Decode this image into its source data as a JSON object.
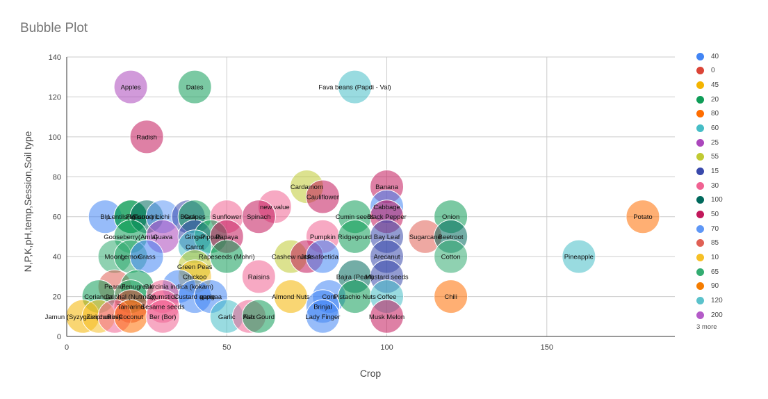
{
  "chart_data": {
    "type": "scatter",
    "subtype": "bubble",
    "title": "Bubble Plot",
    "xlabel": "Crop",
    "ylabel": "N,P,K,pH,temp,Session,Soil type",
    "xlim": [
      0,
      190
    ],
    "ylim": [
      0,
      140
    ],
    "x_ticks": [
      0,
      50,
      100,
      150
    ],
    "y_ticks": [
      0,
      20,
      40,
      60,
      80,
      100,
      120,
      140
    ],
    "grid": true,
    "legend_position": "right",
    "legend": [
      {
        "label": "40",
        "color": "#4285f4"
      },
      {
        "label": "0",
        "color": "#db4437"
      },
      {
        "label": "45",
        "color": "#f4b400"
      },
      {
        "label": "20",
        "color": "#0f9d58"
      },
      {
        "label": "80",
        "color": "#ff6d00"
      },
      {
        "label": "60",
        "color": "#46bdc6"
      },
      {
        "label": "25",
        "color": "#ab47bc"
      },
      {
        "label": "55",
        "color": "#c0ca33"
      },
      {
        "label": "15",
        "color": "#3949ab"
      },
      {
        "label": "30",
        "color": "#f06292"
      },
      {
        "label": "100",
        "color": "#00695c"
      },
      {
        "label": "50",
        "color": "#c2185b"
      },
      {
        "label": "70",
        "color": "#5e97f6"
      },
      {
        "label": "85",
        "color": "#e06055"
      },
      {
        "label": "10",
        "color": "#f6c026"
      },
      {
        "label": "65",
        "color": "#33ac71"
      },
      {
        "label": "90",
        "color": "#f57c00"
      },
      {
        "label": "120",
        "color": "#5bc2cb"
      },
      {
        "label": "200",
        "color": "#b45bc8"
      }
    ],
    "legend_more": "3 more",
    "points": [
      {
        "label": "Apples",
        "x": 20,
        "y": 125,
        "color": "#ab47bc"
      },
      {
        "label": "Dates",
        "x": 40,
        "y": 125,
        "color": "#0f9d58"
      },
      {
        "label": "Fava beans (Papdi - Val)",
        "x": 90,
        "y": 125,
        "color": "#46bdc6"
      },
      {
        "label": "Radish",
        "x": 25,
        "y": 100,
        "color": "#c2185b"
      },
      {
        "label": "Cardamom",
        "x": 75,
        "y": 75,
        "color": "#c0ca33"
      },
      {
        "label": "Banana",
        "x": 100,
        "y": 75,
        "color": "#c2185b"
      },
      {
        "label": "Cauliflower",
        "x": 80,
        "y": 70,
        "color": "#c2185b"
      },
      {
        "label": "new value",
        "x": 65,
        "y": 65,
        "color": "#f06292"
      },
      {
        "label": "Cabbage",
        "x": 100,
        "y": 65,
        "color": "#4285f4"
      },
      {
        "label": "Blp",
        "x": 12,
        "y": 60,
        "color": "#4285f4"
      },
      {
        "label": "Lentils(Masoor)",
        "x": 20,
        "y": 60,
        "color": "#0f9d58"
      },
      {
        "label": "Fig",
        "x": 20,
        "y": 60,
        "color": "#0f9d58"
      },
      {
        "label": "Turmeric",
        "x": 25,
        "y": 60,
        "color": "#00695c"
      },
      {
        "label": "Lichi",
        "x": 30,
        "y": 60,
        "color": "#5e97f6"
      },
      {
        "label": "Black",
        "x": 38,
        "y": 60,
        "color": "#3949ab"
      },
      {
        "label": "Grapes",
        "x": 40,
        "y": 60,
        "color": "#0f9d58"
      },
      {
        "label": "Sunflower",
        "x": 50,
        "y": 60,
        "color": "#f06292"
      },
      {
        "label": "Spinach",
        "x": 60,
        "y": 60,
        "color": "#c2185b"
      },
      {
        "label": "Cumin seeds",
        "x": 90,
        "y": 60,
        "color": "#0f9d58"
      },
      {
        "label": "Black Pepper",
        "x": 100,
        "y": 60,
        "color": "#c2185b"
      },
      {
        "label": "Onion",
        "x": 120,
        "y": 60,
        "color": "#0f9d58"
      },
      {
        "label": "Potato",
        "x": 180,
        "y": 60,
        "color": "#ff6d00"
      },
      {
        "label": "Gooseberry(Amla)",
        "x": 20,
        "y": 50,
        "color": "#0f9d58"
      },
      {
        "label": "Guava",
        "x": 30,
        "y": 50,
        "color": "#ab47bc"
      },
      {
        "label": "Ginger",
        "x": 40,
        "y": 50,
        "color": "#3949ab"
      },
      {
        "label": "Pippali",
        "x": 45,
        "y": 50,
        "color": "#0f9d58"
      },
      {
        "label": "Papaya",
        "x": 50,
        "y": 50,
        "color": "#c2185b"
      },
      {
        "label": "Pumpkin",
        "x": 80,
        "y": 50,
        "color": "#f06292"
      },
      {
        "label": "Ridgegourd",
        "x": 90,
        "y": 50,
        "color": "#0f9d58"
      },
      {
        "label": "Bay Leaf",
        "x": 100,
        "y": 50,
        "color": "#3949ab"
      },
      {
        "label": "Sugarcane",
        "x": 112,
        "y": 50,
        "color": "#e06055"
      },
      {
        "label": "Beetroot",
        "x": 120,
        "y": 50,
        "color": "#00695c"
      },
      {
        "label": "Carrot",
        "x": 40,
        "y": 45,
        "color": "#46bdc6"
      },
      {
        "label": "Moong",
        "x": 15,
        "y": 40,
        "color": "#33ac71"
      },
      {
        "label": "Lemon",
        "x": 20,
        "y": 40,
        "color": "#33ac71"
      },
      {
        "label": "Grass",
        "x": 25,
        "y": 40,
        "color": "#4285f4"
      },
      {
        "label": "Rapeseeds (Mohri)",
        "x": 50,
        "y": 40,
        "color": "#0f9d58"
      },
      {
        "label": "Cashew nuts",
        "x": 70,
        "y": 40,
        "color": "#c0ca33"
      },
      {
        "label": "Jute",
        "x": 75,
        "y": 40,
        "color": "#c2185b"
      },
      {
        "label": "Asafoetida",
        "x": 80,
        "y": 40,
        "color": "#4285f4"
      },
      {
        "label": "Arecanut",
        "x": 100,
        "y": 40,
        "color": "#3949ab"
      },
      {
        "label": "Cotton",
        "x": 120,
        "y": 40,
        "color": "#33ac71"
      },
      {
        "label": "Pineapple",
        "x": 160,
        "y": 40,
        "color": "#46bdc6"
      },
      {
        "label": "Green Peas",
        "x": 40,
        "y": 35,
        "color": "#c0ca33"
      },
      {
        "label": "Chickoo",
        "x": 40,
        "y": 30,
        "color": "#f6c026"
      },
      {
        "label": "Raisins",
        "x": 60,
        "y": 30,
        "color": "#f06292"
      },
      {
        "label": "Bajra (Pearl)",
        "x": 90,
        "y": 30,
        "color": "#00695c"
      },
      {
        "label": "Mustard seeds",
        "x": 100,
        "y": 30,
        "color": "#3949ab"
      },
      {
        "label": "Peanut",
        "x": 15,
        "y": 25,
        "color": "#e06055"
      },
      {
        "label": "Fenugreek",
        "x": 22,
        "y": 25,
        "color": "#0f9d58"
      },
      {
        "label": "Garcinia indica (kokam)",
        "x": 35,
        "y": 25,
        "color": "#4285f4"
      },
      {
        "label": "Coriander",
        "x": 10,
        "y": 20,
        "color": "#0f9d58"
      },
      {
        "label": "Jaiphal (Nutmeg)",
        "x": 20,
        "y": 20,
        "color": "#33ac71"
      },
      {
        "label": "Drumstick",
        "x": 30,
        "y": 20,
        "color": "#f06292"
      },
      {
        "label": "Custard apple",
        "x": 40,
        "y": 20,
        "color": "#4285f4"
      },
      {
        "label": "gangaa",
        "x": 45,
        "y": 20,
        "color": "#4285f4"
      },
      {
        "label": "Almond Nuts",
        "x": 70,
        "y": 20,
        "color": "#f4b400"
      },
      {
        "label": "Corn",
        "x": 82,
        "y": 20,
        "color": "#4285f4"
      },
      {
        "label": "Pistachio Nuts",
        "x": 90,
        "y": 20,
        "color": "#0f9d58"
      },
      {
        "label": "Coffee",
        "x": 100,
        "y": 20,
        "color": "#46bdc6"
      },
      {
        "label": "Chili",
        "x": 120,
        "y": 20,
        "color": "#ff6d00"
      },
      {
        "label": "Tamarind",
        "x": 20,
        "y": 15,
        "color": "#db4437"
      },
      {
        "label": "Sesame seeds",
        "x": 30,
        "y": 15,
        "color": "#f06292"
      },
      {
        "label": "Brinjal",
        "x": 80,
        "y": 15,
        "color": "#4285f4"
      },
      {
        "label": "Jamun (Syzygium cumini)",
        "x": 5,
        "y": 10,
        "color": "#f4b400"
      },
      {
        "label": "Ziziphus",
        "x": 10,
        "y": 10,
        "color": "#f6c026"
      },
      {
        "label": "Rose",
        "x": 15,
        "y": 10,
        "color": "#f06292"
      },
      {
        "label": "Coconut",
        "x": 20,
        "y": 10,
        "color": "#ff6d00"
      },
      {
        "label": "Ber (Bor)",
        "x": 30,
        "y": 10,
        "color": "#f06292"
      },
      {
        "label": "Garlic",
        "x": 50,
        "y": 10,
        "color": "#46bdc6"
      },
      {
        "label": "Flax",
        "x": 57,
        "y": 10,
        "color": "#f06292"
      },
      {
        "label": "Ash Gourd",
        "x": 60,
        "y": 10,
        "color": "#0f9d58"
      },
      {
        "label": "Lady Finger",
        "x": 80,
        "y": 10,
        "color": "#4285f4"
      },
      {
        "label": "Musk Melon",
        "x": 100,
        "y": 10,
        "color": "#c2185b"
      }
    ]
  }
}
